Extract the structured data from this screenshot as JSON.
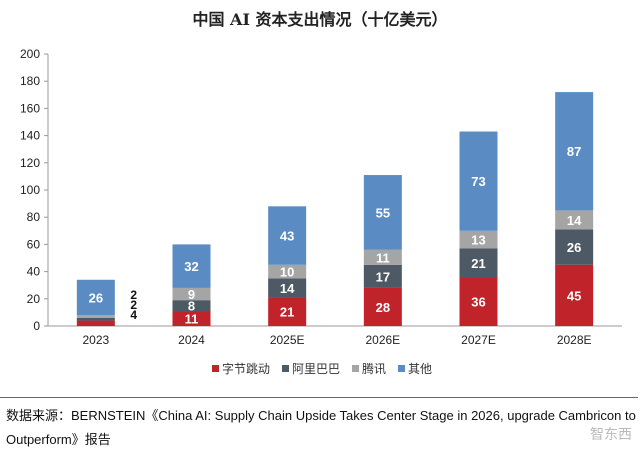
{
  "chart_data": {
    "type": "bar",
    "stacked": true,
    "title": "中国 AI 资本支出情况（十亿美元）",
    "categories": [
      "2023",
      "2024",
      "2025E",
      "2026E",
      "2027E",
      "2028E"
    ],
    "series": [
      {
        "name": "字节跳动",
        "color": "#c0232a",
        "values": [
          4,
          11,
          21,
          28,
          36,
          45
        ]
      },
      {
        "name": "阿里巴巴",
        "color": "#4d5965",
        "values": [
          2,
          8,
          14,
          17,
          21,
          26
        ]
      },
      {
        "name": "腾讯",
        "color": "#a5a5a5",
        "values": [
          2,
          9,
          10,
          11,
          13,
          14
        ]
      },
      {
        "name": "其他",
        "color": "#5a8cc3",
        "values": [
          26,
          32,
          43,
          55,
          73,
          87
        ]
      }
    ],
    "ylim": [
      0,
      200
    ],
    "yticks": [
      0,
      20,
      40,
      60,
      80,
      100,
      120,
      140,
      160,
      180,
      200
    ],
    "grid": false,
    "legend_position": "bottom",
    "side_labels_2023": [
      "2",
      "2",
      "4"
    ]
  },
  "source": "数据来源：BERNSTEIN《China AI: Supply Chain Upside Takes Center Stage in 2026, upgrade Cambricon to Outperform》报告",
  "watermark": "智东西"
}
